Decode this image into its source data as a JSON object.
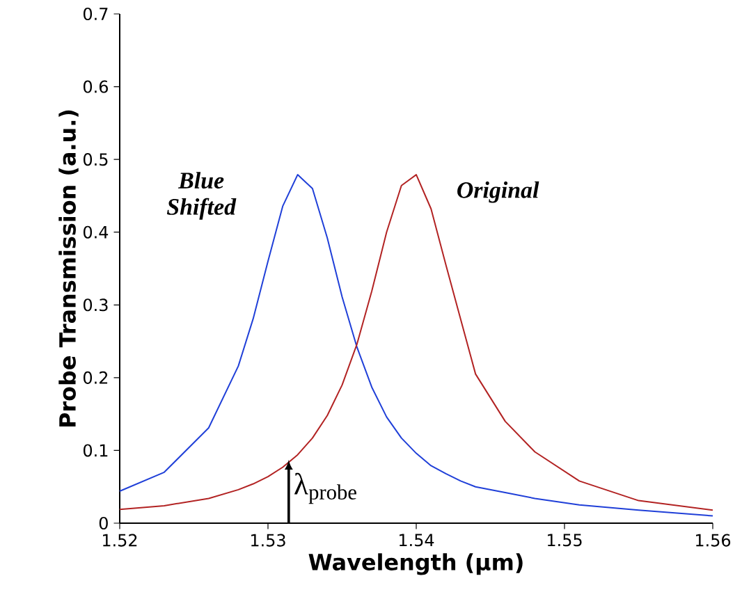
{
  "chart_data": {
    "type": "line",
    "xlabel": "Wavelength (μm)",
    "ylabel": "Probe Transmission (a.u.)",
    "x": [
      1.52,
      1.523,
      1.526,
      1.528,
      1.529,
      1.53,
      1.531,
      1.532,
      1.533,
      1.534,
      1.535,
      1.536,
      1.537,
      1.538,
      1.539,
      1.54,
      1.541,
      1.542,
      1.543,
      1.544,
      1.546,
      1.548,
      1.551,
      1.555,
      1.56
    ],
    "series": [
      {
        "name": "Blue Shifted",
        "color": "#1f3fd8",
        "values": [
          0.044,
          0.07,
          0.131,
          0.216,
          0.281,
          0.36,
          0.436,
          0.479,
          0.46,
          0.392,
          0.311,
          0.242,
          0.187,
          0.146,
          0.117,
          0.096,
          0.079,
          0.068,
          0.058,
          0.05,
          0.042,
          0.034,
          0.025,
          0.018,
          0.01
        ]
      },
      {
        "name": "Original",
        "color": "#b22222",
        "values": [
          0.019,
          0.024,
          0.034,
          0.046,
          0.054,
          0.064,
          0.077,
          0.094,
          0.117,
          0.148,
          0.19,
          0.246,
          0.319,
          0.4,
          0.464,
          0.479,
          0.432,
          0.355,
          0.28,
          0.205,
          0.14,
          0.098,
          0.058,
          0.031,
          0.018
        ]
      }
    ],
    "xlim": [
      1.52,
      1.56
    ],
    "xticks": [
      1.52,
      1.53,
      1.54,
      1.55,
      1.56
    ],
    "ylim": [
      0,
      0.7
    ],
    "yticks": [
      0,
      0.1,
      0.2,
      0.3,
      0.4,
      0.5,
      0.6,
      0.7
    ],
    "annotations": [
      {
        "text": "λ$_{probe}$",
        "x": 1.5314,
        "y": 0.087
      }
    ],
    "legend": false,
    "grid": false,
    "marker": "none",
    "line_style": "solid"
  }
}
